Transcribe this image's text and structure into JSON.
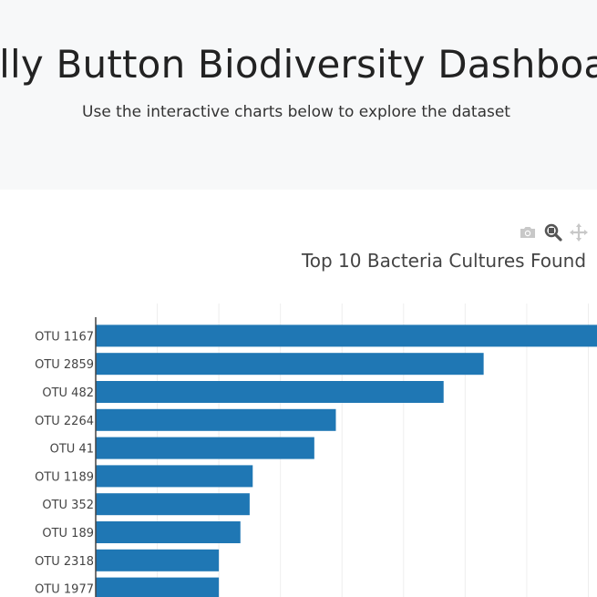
{
  "header": {
    "title": "Belly Button Biodiversity Dashboard",
    "subtitle": "Use the interactive charts below to explore the dataset"
  },
  "modebar": {
    "icons": [
      "camera-icon",
      "zoom-icon",
      "pan-icon"
    ]
  },
  "chart_data": {
    "type": "bar",
    "orientation": "horizontal",
    "title": "Top 10 Bacteria Cultures Found",
    "categories": [
      "OTU 1167",
      "OTU 2859",
      "OTU 482",
      "OTU 2264",
      "OTU 41",
      "OTU 1189",
      "OTU 352",
      "OTU 189",
      "OTU 2318",
      "OTU 1977"
    ],
    "values": [
      163,
      126,
      113,
      78,
      71,
      51,
      50,
      47,
      40,
      40
    ],
    "xlim": [
      0,
      160
    ],
    "grid": true,
    "color": "#1f77b4"
  }
}
